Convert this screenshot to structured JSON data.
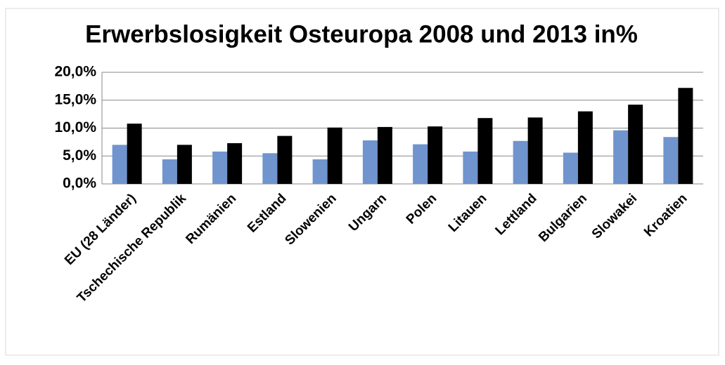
{
  "chart_data": {
    "type": "bar",
    "title": "Erwerbslosigkeit Osteuropa 2008 und 2013 in%",
    "categories": [
      "EU (28 Länder)",
      "Tschechische Republik",
      "Rumänien",
      "Estland",
      "Slowenien",
      "Ungarn",
      "Polen",
      "Litauen",
      "Lettland",
      "Bulgarien",
      "Slowakei",
      "Kroatien"
    ],
    "series": [
      {
        "color": "#7094cd",
        "values": [
          7.0,
          4.4,
          5.8,
          5.5,
          4.4,
          7.8,
          7.1,
          5.8,
          7.7,
          5.6,
          9.6,
          8.4
        ]
      },
      {
        "color": "#000000",
        "values": [
          10.8,
          7.0,
          7.3,
          8.6,
          10.1,
          10.2,
          10.3,
          11.8,
          11.9,
          13.0,
          14.2,
          17.2
        ]
      }
    ],
    "ylim": [
      0,
      20
    ],
    "yticks": [
      {
        "value": 0,
        "label": "0,0%"
      },
      {
        "value": 5,
        "label": "5,0%"
      },
      {
        "value": 10,
        "label": "10,0%"
      },
      {
        "value": 15,
        "label": "15,0%"
      },
      {
        "value": 20,
        "label": "20,0%"
      }
    ],
    "grid": true
  }
}
